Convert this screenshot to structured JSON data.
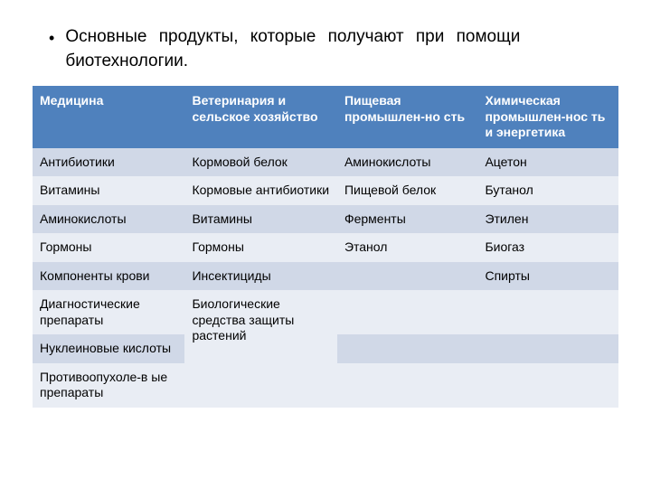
{
  "title": {
    "bullet": "•",
    "line1": "Основные продукты, которые получают при помощи",
    "line2": "биотехнологии."
  },
  "colors": {
    "header_bg": "#4f81bd",
    "row_odd": "#d0d8e7",
    "row_even": "#e9edf4",
    "text": "#000000",
    "header_text": "#ffffff"
  },
  "table": {
    "columns": [
      "Медицина",
      "Ветеринария и сельское хозяйство",
      "Пищевая промышлен-но сть",
      "Химическая промышлен-нос ть и энергетика"
    ],
    "rows": [
      [
        "Антибиотики",
        "Кормовой белок",
        "Аминокислоты",
        "Ацетон"
      ],
      [
        "Витамины",
        "Кормовые антибиотики",
        "Пищевой белок",
        "Бутанол"
      ],
      [
        "Аминокислоты",
        "Витамины",
        "Ферменты",
        "Этилен"
      ],
      [
        "Гормоны",
        "Гормоны",
        "Этанол",
        "Биогаз"
      ],
      [
        "Компоненты крови",
        "Инсектициды",
        "",
        "Спирты"
      ],
      [
        "Диагностические препараты",
        "",
        "",
        ""
      ],
      [
        "Нуклеиновые кислоты",
        "",
        "",
        ""
      ],
      [
        "Противоопухоле-в ые препараты",
        "",
        "",
        ""
      ]
    ],
    "rowspan_r5_c1": "Биологические средства защиты растений",
    "fontsize_cell": 14
  }
}
